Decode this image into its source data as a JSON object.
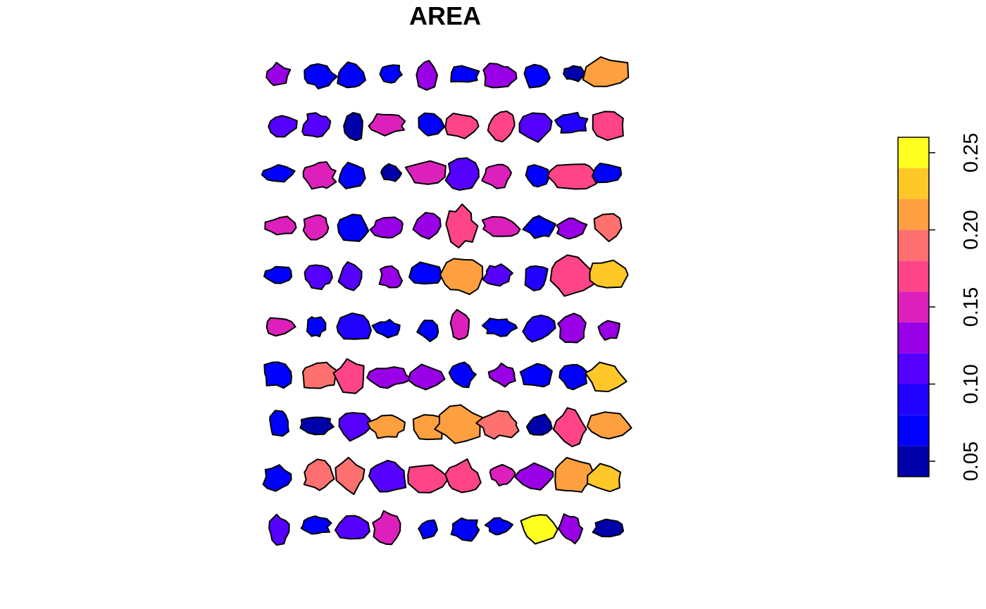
{
  "title": "AREA",
  "palette": [
    "#0000AA",
    "#0000FF",
    "#2000FF",
    "#5500FF",
    "#9900E6",
    "#DD20BB",
    "#FF4488",
    "#FF7070",
    "#FFA040",
    "#FFC828",
    "#FFFF20"
  ],
  "legend": {
    "breaks": [
      0.04,
      0.06,
      0.08,
      0.1,
      0.12,
      0.14,
      0.16,
      0.18,
      0.2,
      0.22,
      0.24,
      0.26
    ],
    "tick_values": [
      0.05,
      0.1,
      0.15,
      0.2,
      0.25
    ],
    "tick_labels": [
      "0.05",
      "0.10",
      "0.15",
      "0.20",
      "0.25"
    ]
  },
  "rows": [
    [
      4,
      1,
      1,
      1,
      4,
      1,
      4,
      1,
      0,
      8
    ],
    [
      3,
      3,
      0,
      5,
      1,
      6,
      6,
      3,
      2,
      6
    ],
    [
      1,
      5,
      1,
      0,
      5,
      3,
      5,
      1,
      6,
      1
    ],
    [
      5,
      5,
      1,
      4,
      4,
      6,
      5,
      1,
      4,
      7
    ],
    [
      1,
      3,
      3,
      4,
      1,
      8,
      3,
      2,
      6,
      9
    ],
    [
      5,
      1,
      2,
      1,
      1,
      5,
      1,
      2,
      4,
      4
    ],
    [
      1,
      7,
      6,
      4,
      4,
      1,
      4,
      1,
      1,
      9
    ],
    [
      1,
      0,
      3,
      8,
      8,
      8,
      7,
      0,
      6,
      8
    ],
    [
      1,
      7,
      7,
      3,
      6,
      6,
      5,
      4,
      8,
      9
    ],
    [
      3,
      1,
      3,
      5,
      1,
      1,
      1,
      10,
      4,
      0
    ]
  ]
}
